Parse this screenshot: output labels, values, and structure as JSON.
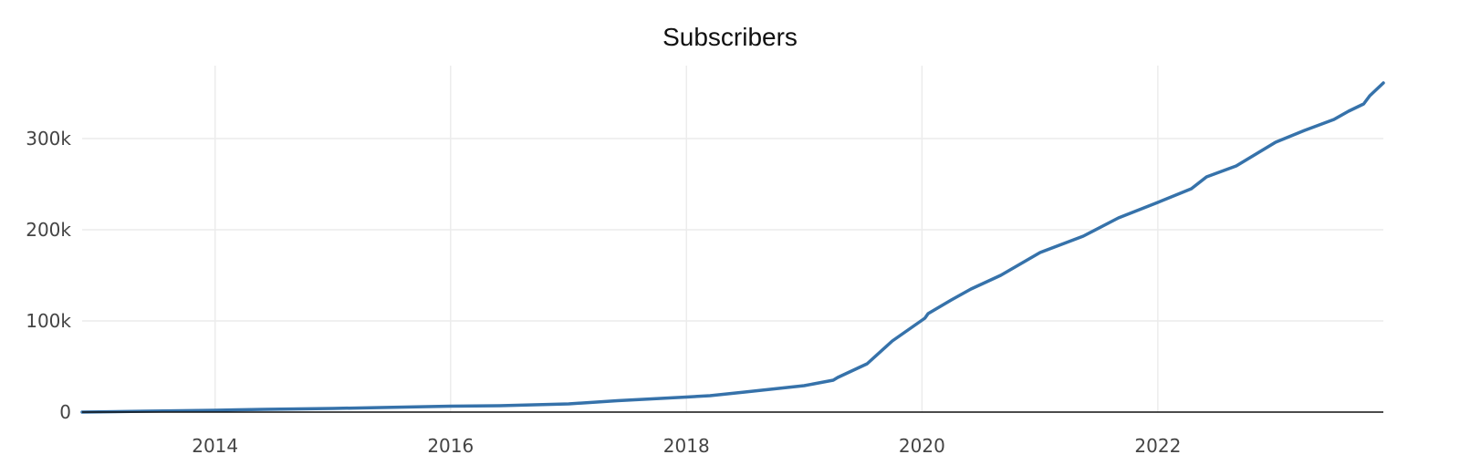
{
  "chart_data": {
    "type": "line",
    "title": "Subscribers",
    "xlabel": "",
    "ylabel": "",
    "x_ticks": [
      "2014",
      "2016",
      "2018",
      "2020",
      "2022"
    ],
    "y_ticks": [
      "0",
      "100k",
      "200k",
      "300k"
    ],
    "xlim": [
      "2012-11-15",
      "2023-12-01"
    ],
    "ylim": [
      0,
      380000
    ],
    "grid": true,
    "legend": "none",
    "series": [
      {
        "color": "#3672aa",
        "points": [
          [
            "2012-11-15",
            0
          ],
          [
            "2013-06-01",
            1000
          ],
          [
            "2014-01-01",
            2000
          ],
          [
            "2014-06-01",
            3000
          ],
          [
            "2015-01-01",
            4000
          ],
          [
            "2015-06-01",
            5000
          ],
          [
            "2016-01-01",
            6500
          ],
          [
            "2016-06-01",
            7000
          ],
          [
            "2017-01-01",
            9000
          ],
          [
            "2017-06-01",
            12500
          ],
          [
            "2018-01-01",
            16500
          ],
          [
            "2018-03-15",
            18000
          ],
          [
            "2018-07-01",
            22000
          ],
          [
            "2019-01-01",
            29000
          ],
          [
            "2019-04-01",
            35000
          ],
          [
            "2019-04-15",
            38000
          ],
          [
            "2019-07-15",
            53000
          ],
          [
            "2019-10-01",
            78000
          ],
          [
            "2020-01-10",
            103000
          ],
          [
            "2020-01-20",
            108000
          ],
          [
            "2020-04-01",
            123000
          ],
          [
            "2020-06-01",
            135000
          ],
          [
            "2020-09-01",
            150000
          ],
          [
            "2021-01-01",
            175000
          ],
          [
            "2021-05-15",
            193000
          ],
          [
            "2021-09-01",
            213000
          ],
          [
            "2022-01-01",
            230000
          ],
          [
            "2022-04-15",
            245000
          ],
          [
            "2022-06-01",
            258000
          ],
          [
            "2022-09-01",
            270000
          ],
          [
            "2023-01-01",
            296000
          ],
          [
            "2023-04-01",
            309000
          ],
          [
            "2023-07-01",
            321000
          ],
          [
            "2023-08-15",
            330000
          ],
          [
            "2023-10-01",
            338000
          ],
          [
            "2023-10-20",
            347000
          ],
          [
            "2023-12-01",
            361000
          ]
        ]
      }
    ]
  }
}
